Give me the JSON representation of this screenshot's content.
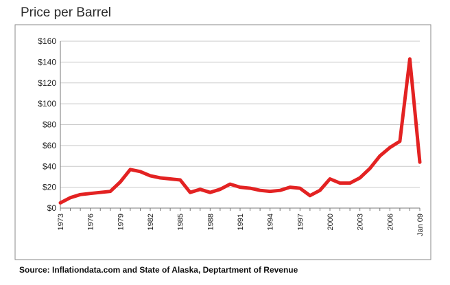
{
  "chart_data": {
    "type": "line",
    "title": "Price per Barrel",
    "xlabel": "",
    "ylabel": "",
    "ylim": [
      0,
      160
    ],
    "yticks": [
      0,
      20,
      40,
      60,
      80,
      100,
      120,
      140,
      160
    ],
    "ytick_labels": [
      "$0",
      "$20",
      "$40",
      "$60",
      "$80",
      "$100",
      "$120",
      "$140",
      "$160"
    ],
    "xlim": [
      1973,
      2009
    ],
    "xticks": [
      1973,
      1976,
      1979,
      1982,
      1985,
      1988,
      1991,
      1994,
      1997,
      2000,
      2003,
      2006,
      2009
    ],
    "xtick_labels": [
      "1973",
      "1976",
      "1979",
      "1982",
      "1985",
      "1988",
      "1991",
      "1994",
      "1997",
      "2000",
      "2003",
      "2006",
      "Jan 09"
    ],
    "grid": true,
    "legend": "none",
    "series": [
      {
        "color": "#e32222",
        "x": [
          1973,
          1974,
          1975,
          1976,
          1977,
          1978,
          1979,
          1980,
          1981,
          1982,
          1983,
          1984,
          1985,
          1986,
          1987,
          1988,
          1989,
          1990,
          1991,
          1992,
          1993,
          1994,
          1995,
          1996,
          1997,
          1998,
          1999,
          2000,
          2001,
          2002,
          2003,
          2004,
          2005,
          2006,
          2007,
          2008,
          2009
        ],
        "y": [
          5,
          10,
          13,
          14,
          15,
          16,
          25,
          37,
          35,
          31,
          29,
          28,
          27,
          15,
          18,
          15,
          18,
          23,
          20,
          19,
          17,
          16,
          17,
          20,
          19,
          12,
          17,
          28,
          24,
          24,
          29,
          38,
          50,
          58,
          64,
          143,
          44
        ]
      }
    ]
  },
  "footer": {
    "source": "Source: Inflationdata.com and State of Alaska, Deptartment of Revenue"
  }
}
